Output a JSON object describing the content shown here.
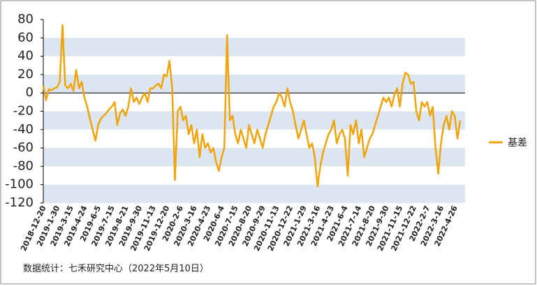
{
  "chart_data": {
    "type": "line",
    "categories": [
      "2018-12-20",
      null,
      null,
      null,
      null,
      "2019-1-30",
      null,
      null,
      null,
      null,
      "2019-3-15",
      null,
      null,
      null,
      null,
      "2019-4-24",
      null,
      null,
      null,
      null,
      "2019-6-5",
      null,
      null,
      null,
      null,
      "2019-7-15",
      null,
      null,
      null,
      null,
      "2019-8-21",
      null,
      null,
      null,
      null,
      "2019-9-30",
      null,
      null,
      null,
      null,
      "2019-11-13",
      null,
      null,
      null,
      null,
      "2019-12-20",
      null,
      null,
      null,
      null,
      "2020-2-6",
      null,
      null,
      null,
      null,
      "2020-3-16",
      null,
      null,
      null,
      null,
      "2020-4-23",
      null,
      null,
      null,
      null,
      "2020-6-4",
      null,
      null,
      null,
      null,
      "2020-7-15",
      null,
      null,
      null,
      null,
      "2020-8-20",
      null,
      null,
      null,
      null,
      "2020-9-29",
      null,
      null,
      null,
      null,
      "2020-11-13",
      null,
      null,
      null,
      null,
      "2020-12-22",
      null,
      null,
      null,
      null,
      "2021-1-29",
      null,
      null,
      null,
      null,
      "2021-3-16",
      null,
      null,
      null,
      null,
      "2021-4-23",
      null,
      null,
      null,
      null,
      "2021-6-4",
      null,
      null,
      null,
      null,
      "2021-7-14",
      null,
      null,
      null,
      null,
      "2021-8-20",
      null,
      null,
      null,
      null,
      "2021-9-30",
      null,
      null,
      null,
      null,
      "2021-11-15",
      null,
      null,
      null,
      null,
      "2021-12-22",
      null,
      null,
      null,
      null,
      "2022-2-7",
      null,
      null,
      null,
      null,
      "2022-3-16",
      null,
      null,
      null,
      null,
      "2022-4-26",
      null,
      null
    ],
    "series": [
      {
        "name": "基差",
        "color": "#f0a30a",
        "values": [
          8,
          -8,
          4,
          3,
          5,
          6,
          12,
          74,
          8,
          5,
          10,
          2,
          25,
          5,
          12,
          -5,
          -15,
          -28,
          -40,
          -52,
          -35,
          -28,
          -25,
          -22,
          -18,
          -15,
          -10,
          -35,
          -22,
          -18,
          -25,
          -15,
          5,
          -10,
          -5,
          -12,
          -5,
          0,
          -10,
          5,
          5,
          8,
          10,
          5,
          20,
          18,
          35,
          5,
          -95,
          -20,
          -15,
          -30,
          -25,
          -45,
          -35,
          -55,
          -40,
          -70,
          -45,
          -60,
          -55,
          -65,
          -60,
          -75,
          -85,
          -70,
          -60,
          63,
          -30,
          -25,
          -45,
          -55,
          -40,
          -50,
          -60,
          -35,
          -45,
          -55,
          -40,
          -50,
          -60,
          -45,
          -35,
          -25,
          -15,
          -10,
          0,
          -5,
          -15,
          5,
          -10,
          -20,
          -35,
          -50,
          -40,
          -30,
          -45,
          -60,
          -55,
          -70,
          -102,
          -80,
          -65,
          -55,
          -45,
          -40,
          -30,
          -55,
          -45,
          -40,
          -50,
          -90,
          -35,
          -45,
          -30,
          -55,
          -40,
          -70,
          -60,
          -50,
          -45,
          -35,
          -25,
          -15,
          -5,
          -10,
          -5,
          -15,
          -2,
          5,
          -15,
          10,
          22,
          20,
          10,
          12,
          -20,
          -30,
          -10,
          -15,
          -10,
          -25,
          -15,
          -60,
          -88,
          -55,
          -35,
          -25,
          -40,
          -20,
          -25,
          -50,
          -30
        ]
      }
    ],
    "ylim": [
      -120,
      80
    ],
    "yticks": [
      80,
      60,
      40,
      20,
      0,
      -20,
      -40,
      -60,
      -80,
      -100,
      -120
    ],
    "grid": "bands",
    "legend": "right",
    "source": "数据统计：七禾研究中心（2022年5月10日）"
  }
}
